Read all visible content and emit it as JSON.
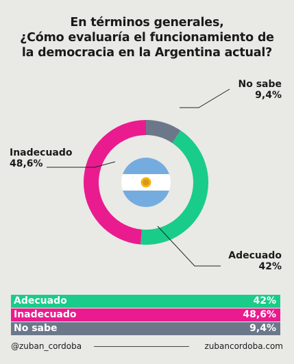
{
  "title_lines": [
    "En términos generales,",
    "¿Cómo evaluaría el funcionamiento de",
    "la democracia en la Argentina actual?"
  ],
  "chart_data": {
    "type": "pie",
    "variant": "donut",
    "start": "top",
    "direction": "counterclockwise-from-no-sabe",
    "slices": [
      {
        "label": "Adecuado",
        "value": 42,
        "display": "42%",
        "color": "#19cc8a"
      },
      {
        "label": "Inadecuado",
        "value": 48.6,
        "display": "48,6%",
        "color": "#ea1b8f"
      },
      {
        "label": "No sabe",
        "value": 9.4,
        "display": "9,4%",
        "color": "#6c788a"
      }
    ],
    "center_icon": "argentina-flag-icon"
  },
  "table": [
    {
      "label": "Adecuado",
      "value": "42%",
      "color": "#19cc8a"
    },
    {
      "label": "Inadecuado",
      "value": "48,6%",
      "color": "#ea1b8f"
    },
    {
      "label": "No sabe",
      "value": "9,4%",
      "color": "#6c788a"
    }
  ],
  "footer": {
    "left": "@zuban_cordoba",
    "right": "zubancordoba.com"
  }
}
